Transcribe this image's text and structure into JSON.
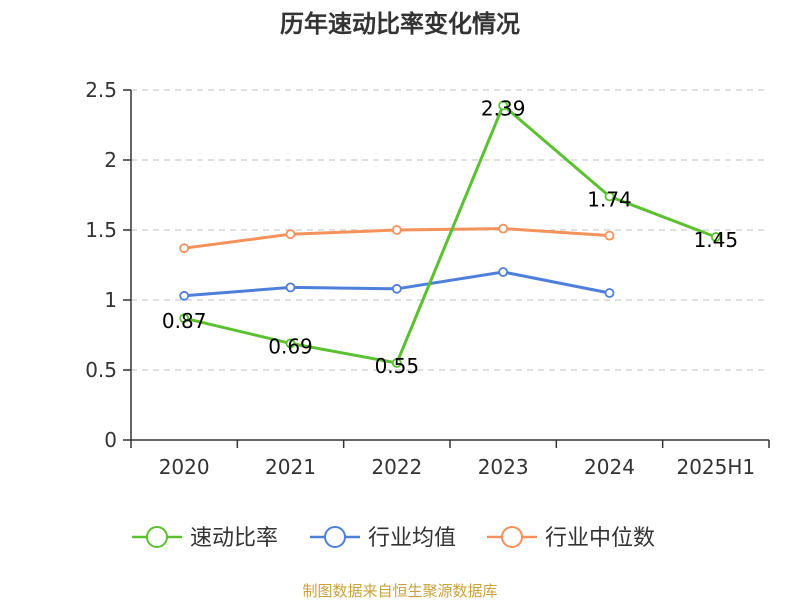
{
  "chart_data": {
    "type": "line",
    "title": "历年速动比率变化情况",
    "categories": [
      "2020",
      "2021",
      "2022",
      "2023",
      "2024",
      "2025H1"
    ],
    "yticks": [
      "0",
      "0.5",
      "1",
      "1.5",
      "2",
      "2.5"
    ],
    "ylim": [
      0,
      2.5
    ],
    "grid": true,
    "legend_position": "bottom",
    "series": [
      {
        "name": "速动比率",
        "color": "#5bc130",
        "values": [
          0.87,
          0.69,
          0.55,
          2.39,
          1.74,
          1.45
        ],
        "labels": [
          "0.87",
          "0.69",
          "0.55",
          "2.39",
          "1.74",
          "1.45"
        ]
      },
      {
        "name": "行业均值",
        "color": "#4d7fdb",
        "values": [
          1.03,
          1.09,
          1.08,
          1.2,
          1.05,
          null
        ]
      },
      {
        "name": "行业中位数",
        "color": "#f5915a",
        "values": [
          1.37,
          1.47,
          1.5,
          1.51,
          1.46,
          null
        ]
      }
    ]
  },
  "source_text": "制图数据来自恒生聚源数据库"
}
